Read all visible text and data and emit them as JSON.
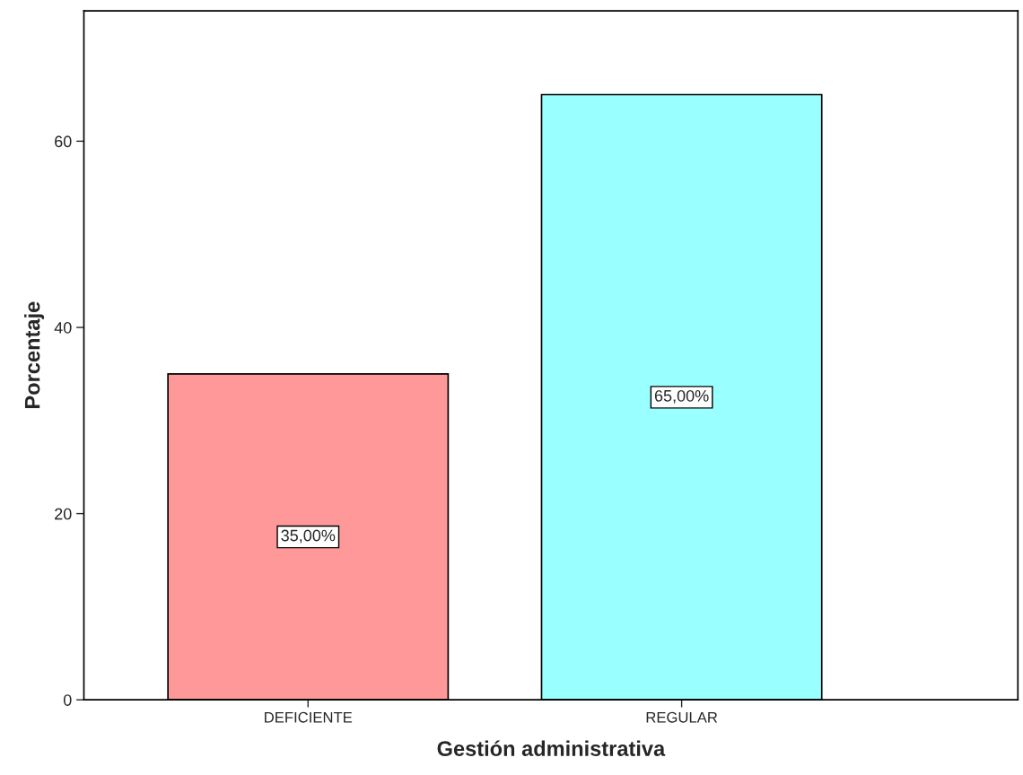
{
  "chart_data": {
    "type": "bar",
    "xlabel": "Gestión administrativa",
    "ylabel": "Porcentaje",
    "categories": [
      "DEFICIENTE",
      "REGULAR"
    ],
    "values": [
      35,
      65
    ],
    "colors": [
      "#ff9999",
      "#99ffff"
    ],
    "value_labels": [
      "35,00%",
      "65,00%"
    ],
    "ylim": [
      0,
      74
    ],
    "yticks": [
      0,
      20,
      40,
      60
    ],
    "grid": false,
    "legend": false
  }
}
